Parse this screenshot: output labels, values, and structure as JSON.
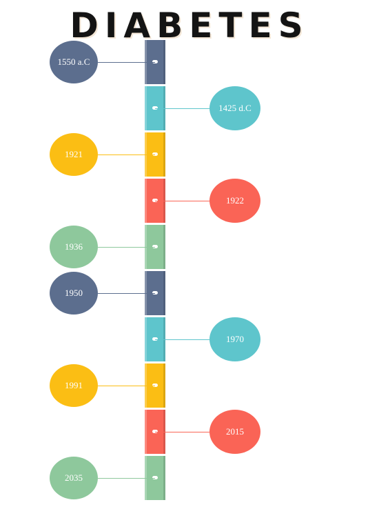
{
  "title": "DIABETES",
  "colors": {
    "slate": "#5c6e8e",
    "teal": "#5ec5cc",
    "yellow": "#fbbe14",
    "red": "#fa6456",
    "green": "#8ec89c"
  },
  "events": [
    {
      "label": "1550 a.C",
      "side": "left",
      "color": "slate"
    },
    {
      "label": "1425 d.C",
      "side": "right",
      "color": "teal"
    },
    {
      "label": "1921",
      "side": "left",
      "color": "yellow"
    },
    {
      "label": "1922",
      "side": "right",
      "color": "red"
    },
    {
      "label": "1936",
      "side": "left",
      "color": "green"
    },
    {
      "label": "1950",
      "side": "left",
      "color": "slate"
    },
    {
      "label": "1970",
      "side": "right",
      "color": "teal"
    },
    {
      "label": "1991",
      "side": "left",
      "color": "yellow"
    },
    {
      "label": "2015",
      "side": "right",
      "color": "red"
    },
    {
      "label": "2035",
      "side": "left",
      "color": "green"
    }
  ]
}
